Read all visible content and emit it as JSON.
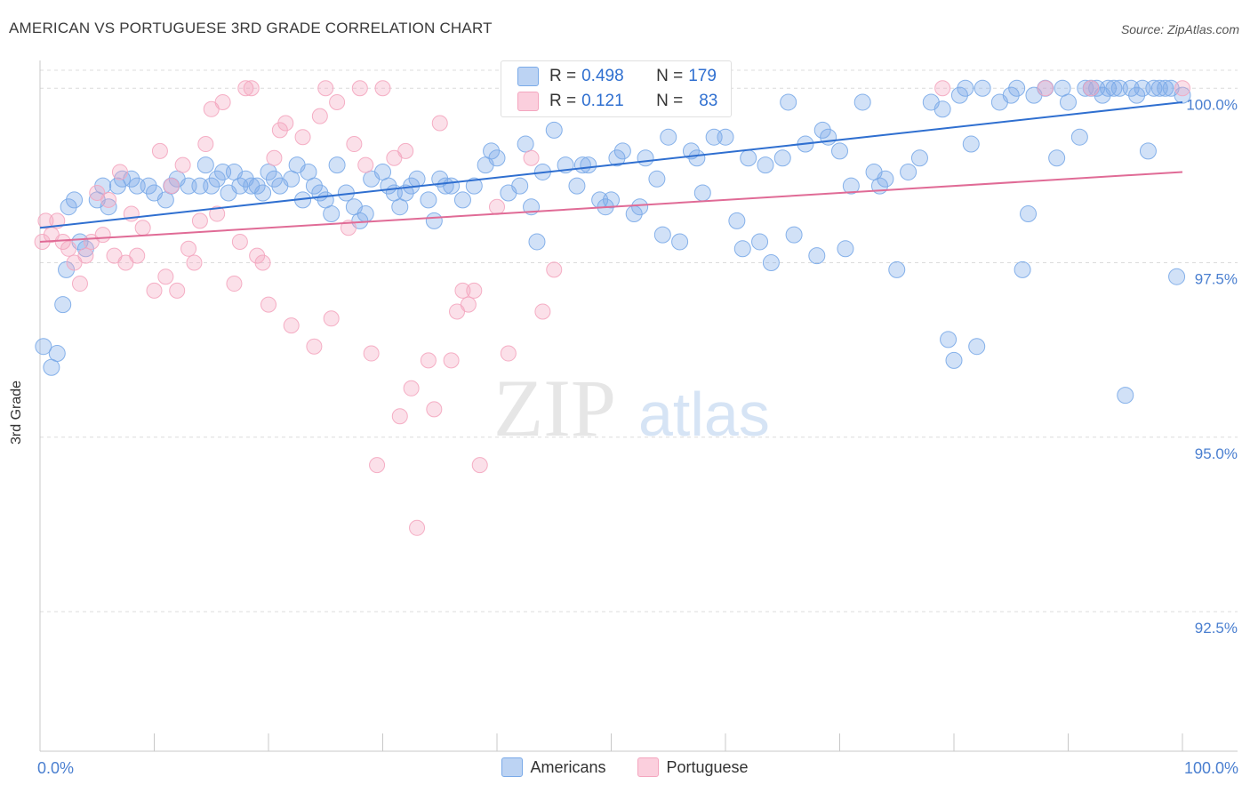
{
  "title": "AMERICAN VS PORTUGUESE 3RD GRADE CORRELATION CHART",
  "source": "Source: ZipAtlas.com",
  "watermark": {
    "zip": "ZIP",
    "atlas": "atlas"
  },
  "chart_data": {
    "type": "scatter",
    "xlabel": "",
    "ylabel": "3rd Grade",
    "xlim": [
      0,
      100
    ],
    "ylim": [
      90.5,
      100.5
    ],
    "x_ticks": [
      {
        "value": 0,
        "label": "0.0%"
      },
      {
        "value": 100,
        "label": "100.0%"
      }
    ],
    "y_ticks": [
      {
        "value": 100,
        "label": "100.0%"
      },
      {
        "value": 97.5,
        "label": "97.5%"
      },
      {
        "value": 95,
        "label": "95.0%"
      },
      {
        "value": 92.5,
        "label": "92.5%"
      }
    ],
    "grid": true,
    "legend_position": "bottom",
    "series": [
      {
        "name": "Americans",
        "color": "#7aaae8",
        "line_color": "#2f6fd0",
        "R": "0.498",
        "N": "179",
        "trend": {
          "x": [
            0,
            100
          ],
          "y": [
            98.0,
            99.8
          ]
        },
        "points": [
          [
            0.3,
            96.3
          ],
          [
            1,
            96.0
          ],
          [
            1.5,
            96.2
          ],
          [
            2,
            96.9
          ],
          [
            2.3,
            97.4
          ],
          [
            2.5,
            98.3
          ],
          [
            3,
            98.4
          ],
          [
            3.5,
            97.8
          ],
          [
            4,
            97.7
          ],
          [
            5,
            98.4
          ],
          [
            5.5,
            98.6
          ],
          [
            6,
            98.3
          ],
          [
            6.8,
            98.6
          ],
          [
            7.2,
            98.7
          ],
          [
            8,
            98.7
          ],
          [
            8.5,
            98.6
          ],
          [
            9.5,
            98.6
          ],
          [
            10,
            98.5
          ],
          [
            11,
            98.4
          ],
          [
            11.5,
            98.6
          ],
          [
            12,
            98.7
          ],
          [
            13,
            98.6
          ],
          [
            14,
            98.6
          ],
          [
            14.5,
            98.9
          ],
          [
            15,
            98.6
          ],
          [
            15.5,
            98.7
          ],
          [
            16,
            98.8
          ],
          [
            16.5,
            98.5
          ],
          [
            17,
            98.8
          ],
          [
            17.5,
            98.6
          ],
          [
            18,
            98.7
          ],
          [
            18.5,
            98.6
          ],
          [
            19,
            98.6
          ],
          [
            19.5,
            98.5
          ],
          [
            20,
            98.8
          ],
          [
            20.5,
            98.7
          ],
          [
            21,
            98.6
          ],
          [
            22,
            98.7
          ],
          [
            22.5,
            98.9
          ],
          [
            23,
            98.4
          ],
          [
            23.5,
            98.8
          ],
          [
            24,
            98.6
          ],
          [
            24.5,
            98.5
          ],
          [
            25,
            98.4
          ],
          [
            25.5,
            98.2
          ],
          [
            26,
            98.9
          ],
          [
            26.8,
            98.5
          ],
          [
            27.5,
            98.3
          ],
          [
            28,
            98.1
          ],
          [
            28.5,
            98.2
          ],
          [
            29,
            98.7
          ],
          [
            30,
            98.8
          ],
          [
            30.5,
            98.6
          ],
          [
            31,
            98.5
          ],
          [
            31.5,
            98.3
          ],
          [
            32,
            98.5
          ],
          [
            32.5,
            98.6
          ],
          [
            33,
            98.7
          ],
          [
            34,
            98.4
          ],
          [
            34.5,
            98.1
          ],
          [
            35,
            98.7
          ],
          [
            35.5,
            98.6
          ],
          [
            36,
            98.6
          ],
          [
            37,
            98.4
          ],
          [
            38,
            98.6
          ],
          [
            39,
            98.9
          ],
          [
            39.5,
            99.1
          ],
          [
            40,
            99.0
          ],
          [
            41,
            98.5
          ],
          [
            42,
            98.6
          ],
          [
            42.5,
            99.2
          ],
          [
            43,
            98.3
          ],
          [
            43.5,
            97.8
          ],
          [
            44,
            98.8
          ],
          [
            45,
            99.4
          ],
          [
            46,
            98.9
          ],
          [
            47,
            98.6
          ],
          [
            47.5,
            98.9
          ],
          [
            48,
            98.9
          ],
          [
            49,
            98.4
          ],
          [
            49.5,
            98.3
          ],
          [
            50,
            98.4
          ],
          [
            50.5,
            99.0
          ],
          [
            51,
            99.1
          ],
          [
            52,
            98.2
          ],
          [
            52.5,
            98.3
          ],
          [
            53,
            99.0
          ],
          [
            54,
            98.7
          ],
          [
            54.5,
            97.9
          ],
          [
            55,
            99.3
          ],
          [
            56,
            97.8
          ],
          [
            57,
            99.1
          ],
          [
            57.5,
            99.0
          ],
          [
            58,
            98.5
          ],
          [
            59,
            99.3
          ],
          [
            60,
            99.3
          ],
          [
            61,
            98.1
          ],
          [
            61.5,
            97.7
          ],
          [
            62,
            99.0
          ],
          [
            63,
            97.8
          ],
          [
            63.5,
            98.9
          ],
          [
            64,
            97.5
          ],
          [
            65,
            99.0
          ],
          [
            65.5,
            99.8
          ],
          [
            66,
            97.9
          ],
          [
            67,
            99.2
          ],
          [
            68,
            97.6
          ],
          [
            68.5,
            99.4
          ],
          [
            69,
            99.3
          ],
          [
            70,
            99.1
          ],
          [
            70.5,
            97.7
          ],
          [
            71,
            98.6
          ],
          [
            72,
            99.8
          ],
          [
            73,
            98.8
          ],
          [
            73.5,
            98.6
          ],
          [
            74,
            98.7
          ],
          [
            75,
            97.4
          ],
          [
            76,
            98.8
          ],
          [
            77,
            99.0
          ],
          [
            78,
            99.8
          ],
          [
            79,
            99.7
          ],
          [
            79.5,
            96.4
          ],
          [
            80,
            96.1
          ],
          [
            80.5,
            99.9
          ],
          [
            81,
            100.0
          ],
          [
            81.5,
            99.2
          ],
          [
            82,
            96.3
          ],
          [
            82.5,
            100.0
          ],
          [
            84,
            99.8
          ],
          [
            85,
            99.9
          ],
          [
            85.5,
            100.0
          ],
          [
            86,
            97.4
          ],
          [
            86.5,
            98.2
          ],
          [
            87,
            99.9
          ],
          [
            88,
            100.0
          ],
          [
            89,
            99.0
          ],
          [
            89.5,
            100.0
          ],
          [
            90,
            99.8
          ],
          [
            91,
            99.3
          ],
          [
            91.5,
            100.0
          ],
          [
            92,
            100.0
          ],
          [
            92.5,
            100.0
          ],
          [
            93,
            99.9
          ],
          [
            93.5,
            100.0
          ],
          [
            94,
            100.0
          ],
          [
            94.5,
            100.0
          ],
          [
            95,
            95.6
          ],
          [
            95.5,
            100.0
          ],
          [
            96,
            99.9
          ],
          [
            96.5,
            100.0
          ],
          [
            97,
            99.1
          ],
          [
            97.5,
            100.0
          ],
          [
            98,
            100.0
          ],
          [
            98.5,
            100.0
          ],
          [
            99,
            100.0
          ],
          [
            99.5,
            97.3
          ],
          [
            100,
            99.9
          ]
        ]
      },
      {
        "name": "Portuguese",
        "color": "#f4a6bf",
        "line_color": "#e06b96",
        "R": "0.121",
        "N": "83",
        "trend": {
          "x": [
            0,
            100
          ],
          "y": [
            97.8,
            98.8
          ]
        },
        "points": [
          [
            0.2,
            97.8
          ],
          [
            0.5,
            98.1
          ],
          [
            1,
            97.9
          ],
          [
            1.5,
            98.1
          ],
          [
            2,
            97.8
          ],
          [
            2.5,
            97.7
          ],
          [
            3,
            97.5
          ],
          [
            3.5,
            97.2
          ],
          [
            4,
            97.6
          ],
          [
            4.5,
            97.8
          ],
          [
            5,
            98.5
          ],
          [
            5.5,
            97.9
          ],
          [
            6,
            98.4
          ],
          [
            6.5,
            97.6
          ],
          [
            7,
            98.8
          ],
          [
            7.5,
            97.5
          ],
          [
            8,
            98.2
          ],
          [
            8.5,
            97.6
          ],
          [
            9,
            98.0
          ],
          [
            10,
            97.1
          ],
          [
            10.5,
            99.1
          ],
          [
            11,
            97.3
          ],
          [
            11.5,
            98.6
          ],
          [
            12,
            97.1
          ],
          [
            12.5,
            98.9
          ],
          [
            13,
            97.7
          ],
          [
            13.5,
            97.5
          ],
          [
            14,
            98.1
          ],
          [
            14.5,
            99.2
          ],
          [
            15,
            99.7
          ],
          [
            15.5,
            98.2
          ],
          [
            16,
            99.8
          ],
          [
            17,
            97.2
          ],
          [
            17.5,
            97.8
          ],
          [
            18,
            100.0
          ],
          [
            18.5,
            100.0
          ],
          [
            19,
            97.6
          ],
          [
            19.5,
            97.5
          ],
          [
            20,
            96.9
          ],
          [
            20.5,
            99.0
          ],
          [
            21,
            99.4
          ],
          [
            21.5,
            99.5
          ],
          [
            22,
            96.6
          ],
          [
            23,
            99.3
          ],
          [
            24,
            96.3
          ],
          [
            24.5,
            99.6
          ],
          [
            25,
            100.0
          ],
          [
            25.5,
            96.7
          ],
          [
            26,
            99.8
          ],
          [
            27,
            98.0
          ],
          [
            27.5,
            99.2
          ],
          [
            28,
            100.0
          ],
          [
            28.5,
            98.9
          ],
          [
            29,
            96.2
          ],
          [
            29.5,
            94.6
          ],
          [
            30,
            100.0
          ],
          [
            31,
            99.0
          ],
          [
            31.5,
            95.3
          ],
          [
            32,
            99.1
          ],
          [
            32.5,
            95.7
          ],
          [
            33,
            93.7
          ],
          [
            34,
            96.1
          ],
          [
            34.5,
            95.4
          ],
          [
            35,
            99.5
          ],
          [
            36,
            96.1
          ],
          [
            36.5,
            96.8
          ],
          [
            37,
            97.1
          ],
          [
            37.5,
            96.9
          ],
          [
            38,
            97.1
          ],
          [
            38.5,
            94.6
          ],
          [
            40,
            98.3
          ],
          [
            41,
            96.2
          ],
          [
            43,
            99.0
          ],
          [
            44,
            96.8
          ],
          [
            45,
            97.4
          ],
          [
            47,
            100.0
          ],
          [
            58,
            100.0
          ],
          [
            79,
            100.0
          ],
          [
            88,
            100.0
          ],
          [
            92,
            100.0
          ],
          [
            100,
            100.0
          ]
        ]
      }
    ]
  }
}
